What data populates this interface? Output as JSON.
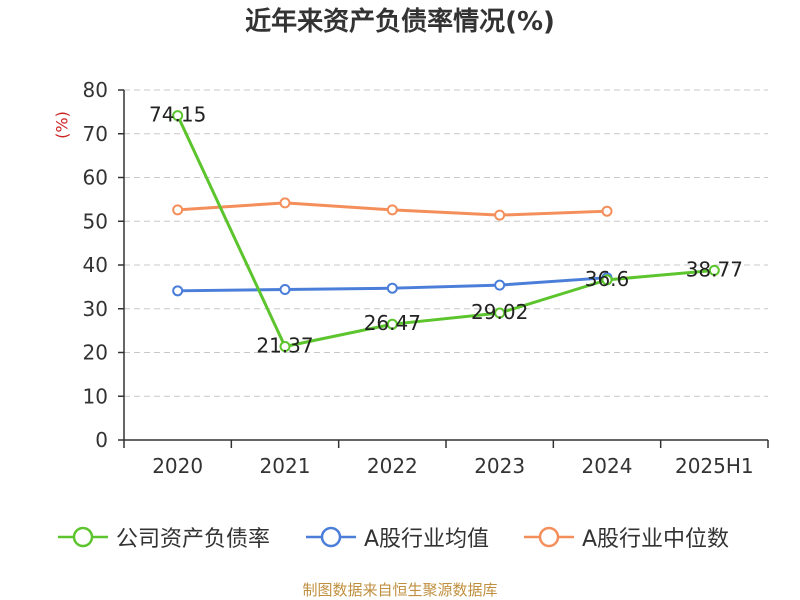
{
  "chart_data": {
    "type": "line",
    "title": "近年来资产负债率情况(%)",
    "xlabel": "",
    "ylabel": "(%)",
    "categories": [
      "2020",
      "2021",
      "2022",
      "2023",
      "2024",
      "2025H1"
    ],
    "ylim": [
      0,
      80
    ],
    "yticks": [
      0,
      10,
      20,
      30,
      40,
      50,
      60,
      70,
      80
    ],
    "grid": true,
    "legend": "bottom",
    "series": [
      {
        "name": "公司资产负债率",
        "color": "#5cc42c",
        "values": [
          74.15,
          21.37,
          26.47,
          29.02,
          36.6,
          38.77
        ],
        "data_labels": true
      },
      {
        "name": "A股行业均值",
        "color": "#4a7ed9",
        "values": [
          34.1,
          34.4,
          34.7,
          35.4,
          37.1,
          null
        ],
        "data_labels": false
      },
      {
        "name": "A股行业中位数",
        "color": "#f48f5b",
        "values": [
          52.6,
          54.2,
          52.6,
          51.4,
          52.3,
          null
        ],
        "data_labels": false
      }
    ],
    "colors": {
      "axis": "#333333",
      "grid": "#c8c8c8",
      "ylabel": "#cc2222"
    }
  },
  "source": "制图数据来自恒生聚源数据库"
}
